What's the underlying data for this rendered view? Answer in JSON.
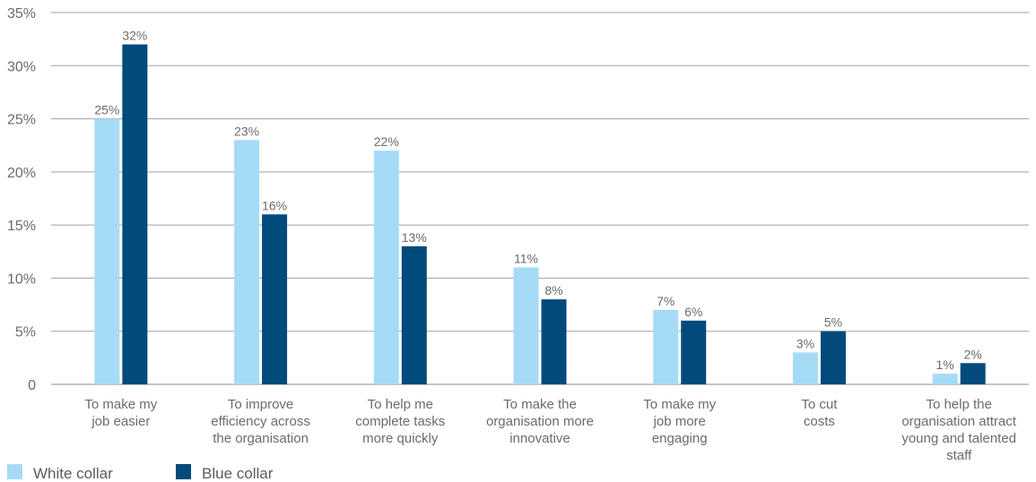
{
  "chart_data": {
    "type": "bar",
    "categories": [
      [
        "To make my",
        "job easier"
      ],
      [
        "To improve",
        "efficiency across",
        "the organisation"
      ],
      [
        "To help me",
        "complete tasks",
        "more quickly"
      ],
      [
        "To make the",
        "organisation more",
        "innovative"
      ],
      [
        "To make my",
        "job more",
        "engaging"
      ],
      [
        "To cut",
        "costs"
      ],
      [
        "To help the",
        "organisation attract",
        "young and talented",
        "staff"
      ]
    ],
    "series": [
      {
        "name": "White collar",
        "values": [
          25,
          23,
          22,
          11,
          7,
          3,
          1
        ],
        "labels": [
          "25%",
          "23%",
          "22%",
          "11%",
          "7%",
          "3%",
          "1%"
        ],
        "color": "#a6dbf7"
      },
      {
        "name": "Blue collar",
        "values": [
          32,
          16,
          13,
          8,
          6,
          5,
          2
        ],
        "labels": [
          "32%",
          "16%",
          "13%",
          "8%",
          "6%",
          "5%",
          "2%"
        ],
        "color": "#004a7c"
      }
    ],
    "ylim": [
      0,
      35
    ],
    "yticks": [
      0,
      5,
      10,
      15,
      20,
      25,
      30,
      35
    ],
    "ytick_labels": [
      "0",
      "5%",
      "10%",
      "15%",
      "20%",
      "25%",
      "30%",
      "35%"
    ],
    "grid": true,
    "legend": "bottom-left"
  }
}
